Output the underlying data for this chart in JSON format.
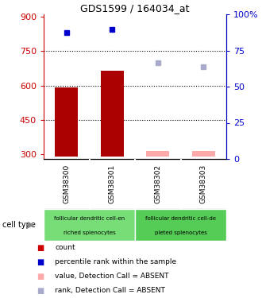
{
  "title": "GDS1599 / 164034_at",
  "samples": [
    "GSM38300",
    "GSM38301",
    "GSM38302",
    "GSM38303"
  ],
  "bar_values": [
    590,
    665,
    null,
    null
  ],
  "absent_bar_values": [
    null,
    null,
    315,
    315
  ],
  "rank_dots": [
    830,
    845,
    null,
    null
  ],
  "absent_rank_dots": [
    null,
    null,
    700,
    680
  ],
  "rank_dot_color": "#0000cc",
  "absent_rank_dot_color": "#aaaacc",
  "bar_color": "#aa0000",
  "absent_bar_color": "#ffaaaa",
  "ylim_left": [
    280,
    910
  ],
  "ylim_right": [
    0,
    100
  ],
  "yticks_left": [
    300,
    450,
    600,
    750,
    900
  ],
  "yticks_right": [
    0,
    25,
    50,
    75,
    100
  ],
  "hlines": [
    450,
    600,
    750
  ],
  "left_axis_color": "#cc0000",
  "right_axis_color": "#0000cc",
  "bar_width": 0.5,
  "cell_type_label": "cell type",
  "group1_label_line1": "follicular dendritic cell-en",
  "group1_label_line2": "riched splenocytes",
  "group2_label_line1": "follicular dendritic cell-de",
  "group2_label_line2": "pleted splenocytes",
  "group1_color": "#77dd77",
  "group2_color": "#55cc55",
  "group1_samples": [
    0,
    1
  ],
  "group2_samples": [
    2,
    3
  ],
  "legend_items": [
    {
      "label": "count",
      "color": "#cc0000"
    },
    {
      "label": "percentile rank within the sample",
      "color": "#0000cc"
    },
    {
      "label": "value, Detection Call = ABSENT",
      "color": "#ffaaaa"
    },
    {
      "label": "rank, Detection Call = ABSENT",
      "color": "#aaaacc"
    }
  ],
  "base_value": 290
}
